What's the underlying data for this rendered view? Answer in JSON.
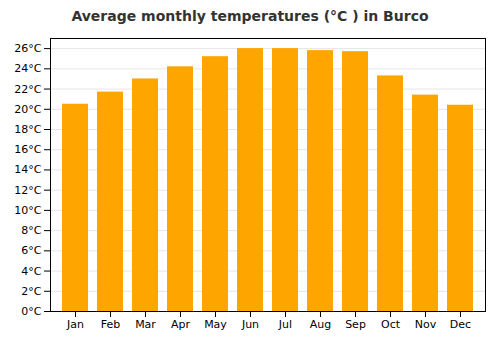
{
  "chart_data": {
    "type": "bar",
    "title": "Average monthly temperatures (°C ) in Burco",
    "categories": [
      "Jan",
      "Feb",
      "Mar",
      "Apr",
      "May",
      "Jun",
      "Jul",
      "Aug",
      "Sep",
      "Oct",
      "Nov",
      "Dec"
    ],
    "values": [
      20.5,
      21.7,
      23.0,
      24.2,
      25.2,
      26.0,
      26.0,
      25.8,
      25.7,
      23.3,
      21.4,
      20.4
    ],
    "color": "#FFA500",
    "ylim": [
      0,
      27
    ],
    "yticks": [
      {
        "value": 0,
        "label": "0°C"
      },
      {
        "value": 2,
        "label": "2°C"
      },
      {
        "value": 4,
        "label": "4°C"
      },
      {
        "value": 6,
        "label": "6°C"
      },
      {
        "value": 8,
        "label": "8°C"
      },
      {
        "value": 10,
        "label": "10°C"
      },
      {
        "value": 12,
        "label": "12°C"
      },
      {
        "value": 14,
        "label": "14°C"
      },
      {
        "value": 16,
        "label": "16°C"
      },
      {
        "value": 18,
        "label": "18°C"
      },
      {
        "value": 20,
        "label": "20°C"
      },
      {
        "value": 22,
        "label": "22°C"
      },
      {
        "value": 24,
        "label": "24°C"
      },
      {
        "value": 26,
        "label": "26°C"
      }
    ],
    "grid": true
  }
}
